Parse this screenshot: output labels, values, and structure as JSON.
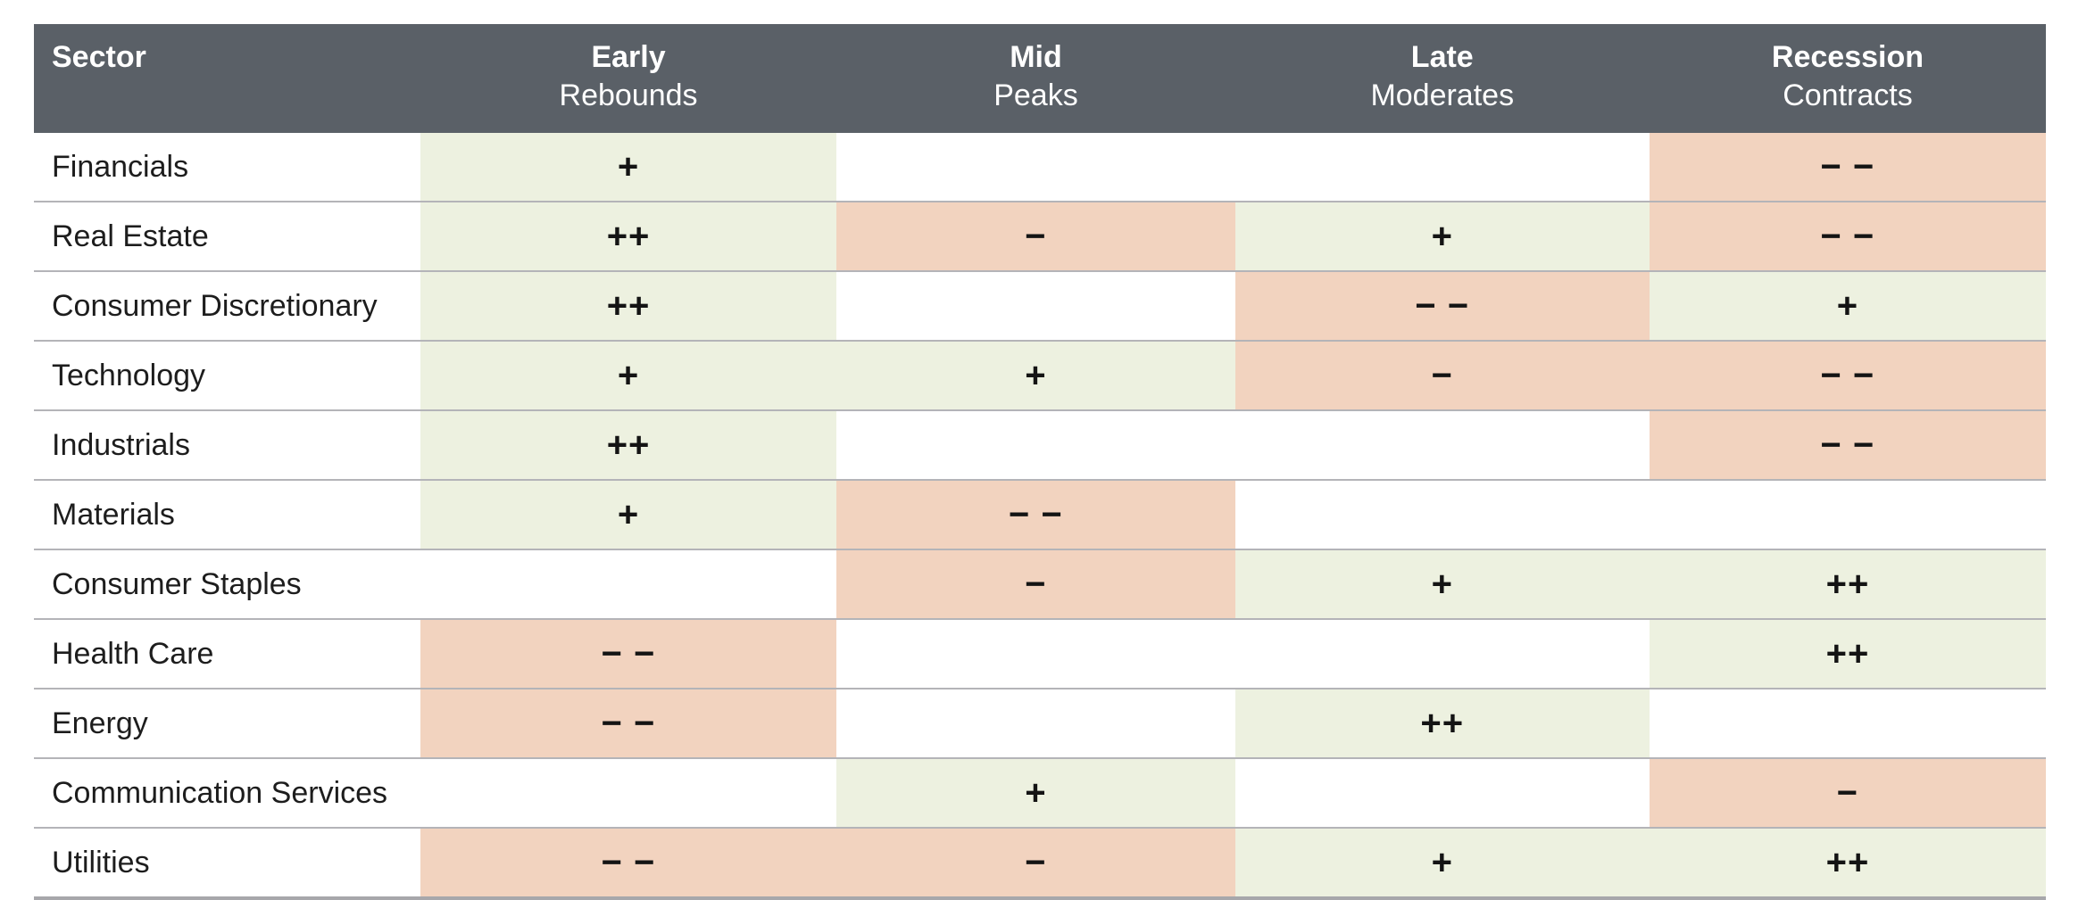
{
  "chart_data": {
    "type": "heatmap",
    "header": {
      "sector_label": "Sector",
      "phases": [
        {
          "name": "Early",
          "sub": "Rebounds"
        },
        {
          "name": "Mid",
          "sub": "Peaks"
        },
        {
          "name": "Late",
          "sub": "Moderates"
        },
        {
          "name": "Recession",
          "sub": "Contracts"
        }
      ]
    },
    "rating_scale": {
      "strong_positive": "++",
      "positive": "+",
      "negative": "−",
      "strong_negative": "− −",
      "none": ""
    },
    "rows": [
      {
        "sector": "Financials",
        "cells": [
          {
            "text": "+",
            "tone": "positive"
          },
          {
            "text": "",
            "tone": "neutral"
          },
          {
            "text": "",
            "tone": "neutral"
          },
          {
            "text": "− −",
            "tone": "negative"
          }
        ]
      },
      {
        "sector": "Real Estate",
        "cells": [
          {
            "text": "++",
            "tone": "positive"
          },
          {
            "text": "−",
            "tone": "negative"
          },
          {
            "text": "+",
            "tone": "positive"
          },
          {
            "text": "− −",
            "tone": "negative"
          }
        ]
      },
      {
        "sector": "Consumer Discretionary",
        "cells": [
          {
            "text": "++",
            "tone": "positive"
          },
          {
            "text": "",
            "tone": "neutral"
          },
          {
            "text": "− −",
            "tone": "negative"
          },
          {
            "text": "+",
            "tone": "positive"
          }
        ]
      },
      {
        "sector": "Technology",
        "cells": [
          {
            "text": "+",
            "tone": "positive"
          },
          {
            "text": "+",
            "tone": "positive"
          },
          {
            "text": "−",
            "tone": "negative"
          },
          {
            "text": "− −",
            "tone": "negative"
          }
        ]
      },
      {
        "sector": "Industrials",
        "cells": [
          {
            "text": "++",
            "tone": "positive"
          },
          {
            "text": "",
            "tone": "neutral"
          },
          {
            "text": "",
            "tone": "neutral"
          },
          {
            "text": "− −",
            "tone": "negative"
          }
        ]
      },
      {
        "sector": "Materials",
        "cells": [
          {
            "text": "+",
            "tone": "positive"
          },
          {
            "text": "− −",
            "tone": "negative"
          },
          {
            "text": "",
            "tone": "neutral"
          },
          {
            "text": "",
            "tone": "neutral"
          }
        ]
      },
      {
        "sector": "Consumer Staples",
        "cells": [
          {
            "text": "",
            "tone": "neutral"
          },
          {
            "text": "−",
            "tone": "negative"
          },
          {
            "text": "+",
            "tone": "positive"
          },
          {
            "text": "++",
            "tone": "positive"
          }
        ]
      },
      {
        "sector": "Health Care",
        "cells": [
          {
            "text": "− −",
            "tone": "negative"
          },
          {
            "text": "",
            "tone": "neutral"
          },
          {
            "text": "",
            "tone": "neutral"
          },
          {
            "text": "++",
            "tone": "positive"
          }
        ]
      },
      {
        "sector": "Energy",
        "cells": [
          {
            "text": "− −",
            "tone": "negative"
          },
          {
            "text": "",
            "tone": "neutral"
          },
          {
            "text": "++",
            "tone": "positive"
          },
          {
            "text": "",
            "tone": "neutral"
          }
        ]
      },
      {
        "sector": "Communication Services",
        "cells": [
          {
            "text": "",
            "tone": "neutral"
          },
          {
            "text": "+",
            "tone": "positive"
          },
          {
            "text": "",
            "tone": "neutral"
          },
          {
            "text": "−",
            "tone": "negative"
          }
        ]
      },
      {
        "sector": "Utilities",
        "cells": [
          {
            "text": "− −",
            "tone": "negative"
          },
          {
            "text": "−",
            "tone": "negative"
          },
          {
            "text": "+",
            "tone": "positive"
          },
          {
            "text": "++",
            "tone": "positive"
          }
        ]
      }
    ],
    "colors": {
      "header_bg": "#5a6067",
      "header_text": "#ffffff",
      "positive_bg": "#edf1e0",
      "negative_bg": "#f2d3bf",
      "neutral_bg": "#ffffff",
      "row_divider": "#b4b4b8",
      "bottom_border": "#a7a7ab",
      "body_text": "#1d1d1d"
    },
    "layout": {
      "grid": "row dividers only, no column lines",
      "legend_position": "none"
    }
  }
}
